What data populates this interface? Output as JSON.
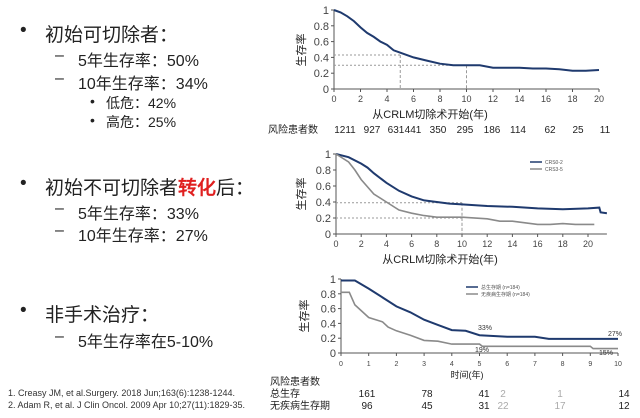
{
  "left": {
    "sections": [
      {
        "bullet": "•",
        "title": "初始可切除者：",
        "items": [
          {
            "dash": "–",
            "text": "5年生存率：50%"
          },
          {
            "dash": "–",
            "text": "10年生存率：34%"
          }
        ],
        "subitems": [
          {
            "bullet": "•",
            "text": "低危：42%"
          },
          {
            "bullet": "•",
            "text": "高危：25%"
          }
        ]
      },
      {
        "bullet": "•",
        "title_pre": "初始不可切除者",
        "title_highlight": "转化",
        "title_post": "后：",
        "items": [
          {
            "dash": "–",
            "text": "5年生存率：33%"
          },
          {
            "dash": "–",
            "text": "10年生存率：27%"
          }
        ]
      },
      {
        "bullet": "•",
        "title": "非手术治疗：",
        "items": [
          {
            "dash": "–",
            "text": "5年生存率在5-10%"
          }
        ]
      }
    ],
    "highlight_color": "#e02020",
    "references": [
      "1. Creasy JM, et al.Surgery. 2018 Jun;163(6):1238-1244.",
      "2. Adam R, et al. J Clin Oncol. 2009 Apr 10;27(11):1829-35."
    ]
  },
  "chart_data": [
    {
      "type": "line",
      "xlabel": "从CRLM切除术开始(年)",
      "ylabel": "生存率",
      "xlim": [
        0,
        20
      ],
      "ylim": [
        0,
        1
      ],
      "xticks": [
        "0",
        "2",
        "4",
        "6",
        "8",
        "10",
        "12",
        "14",
        "16",
        "18",
        "20"
      ],
      "yticks": [
        "0",
        "0.2",
        "0.4",
        "0.6",
        "0.8",
        "1"
      ],
      "series": [
        {
          "color": "#1f3a6e",
          "x": [
            0,
            0.5,
            1,
            1.5,
            2,
            2.5,
            3,
            3.5,
            4,
            4.5,
            5,
            6,
            7,
            8,
            9,
            10,
            11,
            12,
            14,
            15,
            16,
            17,
            18,
            19,
            20
          ],
          "y": [
            1,
            0.97,
            0.92,
            0.86,
            0.78,
            0.71,
            0.66,
            0.6,
            0.56,
            0.49,
            0.46,
            0.4,
            0.36,
            0.32,
            0.3,
            0.3,
            0.3,
            0.27,
            0.27,
            0.26,
            0.26,
            0.25,
            0.23,
            0.23,
            0.24
          ]
        }
      ],
      "reference_lines": [
        {
          "y": 0.43,
          "x": 5
        },
        {
          "y": 0.3,
          "x": 10
        }
      ],
      "risk_table": {
        "label": "风险患者数",
        "values": [
          "1211",
          "927",
          "631",
          "441",
          "350",
          "295",
          "186",
          "114",
          "62",
          "25",
          "11"
        ]
      }
    },
    {
      "type": "line",
      "xlabel": "从CRLM切除术开始(年)",
      "ylabel": "生存率",
      "xlim": [
        0,
        21.5
      ],
      "ylim": [
        0,
        1
      ],
      "xticks": [
        "0",
        "2",
        "4",
        "6",
        "8",
        "10",
        "12",
        "14",
        "16",
        "18",
        "20"
      ],
      "yticks": [
        "0",
        "0.2",
        "0.4",
        "0.6",
        "0.8",
        "1"
      ],
      "series": [
        {
          "name": "CRS0-2",
          "color": "#1f3a6e",
          "x": [
            0,
            1,
            2,
            2.5,
            3,
            4,
            5,
            6,
            7,
            8,
            9,
            10,
            12,
            14,
            16,
            18,
            20,
            20.9,
            21,
            21.5
          ],
          "y": [
            1,
            0.96,
            0.88,
            0.83,
            0.76,
            0.64,
            0.54,
            0.47,
            0.42,
            0.4,
            0.38,
            0.37,
            0.35,
            0.34,
            0.32,
            0.31,
            0.32,
            0.33,
            0.27,
            0.26
          ]
        },
        {
          "name": "CRS3-5",
          "color": "#8a8a8a",
          "x": [
            0,
            1,
            1.5,
            2,
            3,
            4,
            5,
            6,
            7,
            8,
            10,
            12,
            13,
            14,
            15,
            16,
            17,
            18,
            19,
            20.5
          ],
          "y": [
            1,
            0.9,
            0.8,
            0.68,
            0.5,
            0.4,
            0.3,
            0.26,
            0.23,
            0.21,
            0.21,
            0.19,
            0.16,
            0.16,
            0.14,
            0.12,
            0.12,
            0.13,
            0.12,
            0.12
          ]
        }
      ],
      "reference_lines": [
        {
          "y": 0.39,
          "x": 10
        },
        {
          "y": 0.2,
          "x": 10
        }
      ]
    },
    {
      "type": "line",
      "xlabel": "时间(年)",
      "ylabel": "生存率",
      "xlim": [
        0,
        10
      ],
      "ylim": [
        0,
        1
      ],
      "xticks": [
        "0",
        "1",
        "2",
        "3",
        "4",
        "5",
        "6",
        "7",
        "8",
        "9",
        "10"
      ],
      "yticks": [
        "0",
        "0.2",
        "0.4",
        "0.6",
        "0.8",
        "1"
      ],
      "series": [
        {
          "name": "总生存期 (n=184)",
          "color": "#1f3a6e",
          "x": [
            0,
            0.5,
            1,
            1.5,
            2,
            2.5,
            3,
            3.5,
            4,
            4.5,
            5,
            5.5,
            6,
            7,
            7.5,
            10
          ],
          "y": [
            0.98,
            0.98,
            0.87,
            0.75,
            0.63,
            0.55,
            0.45,
            0.38,
            0.31,
            0.3,
            0.24,
            0.23,
            0.22,
            0.22,
            0.19,
            0.19
          ]
        },
        {
          "name": "无疾病生存期 (n=184)",
          "color": "#8a8a8a",
          "x": [
            0,
            0.3,
            0.5,
            1,
            1.5,
            1.7,
            2,
            2.5,
            3,
            3.5,
            4,
            5,
            5.1,
            9,
            9.1,
            10
          ],
          "y": [
            0.82,
            0.82,
            0.65,
            0.48,
            0.42,
            0.35,
            0.3,
            0.24,
            0.17,
            0.16,
            0.12,
            0.12,
            0.09,
            0.09,
            0.06,
            0.06
          ]
        }
      ],
      "annotations": [
        "33%",
        "27%",
        "19%",
        "15%"
      ],
      "risk_table": {
        "label": "风险患者数",
        "rows": [
          {
            "label": "总生存",
            "values": [
              "161",
              "78",
              "41",
              "2",
              "1",
              "14"
            ]
          },
          {
            "label": "无疾病生存期",
            "values": [
              "96",
              "45",
              "31",
              "22",
              "17",
              "12"
            ]
          }
        ]
      }
    }
  ]
}
